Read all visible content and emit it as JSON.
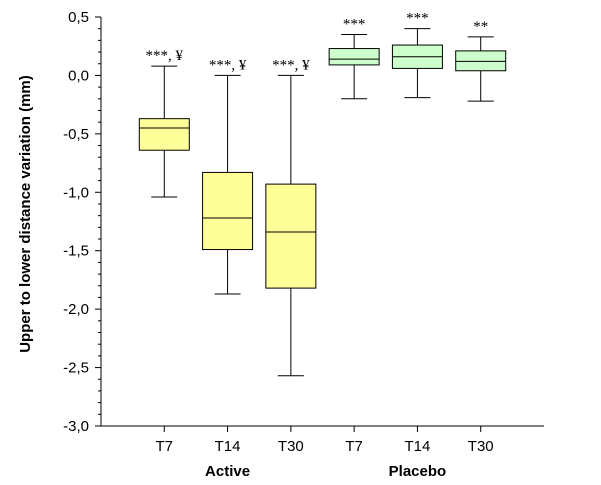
{
  "chart_data": {
    "type": "box",
    "ylabel": "Upper to lower distance variation (mm)",
    "ylim": [
      -3.0,
      0.5
    ],
    "yticks": [
      "0,5",
      "0,0",
      "-0,5",
      "-1,0",
      "-1,5",
      "-2,0",
      "-2,5",
      "-3,0"
    ],
    "ytick_values": [
      0.5,
      0.0,
      -0.5,
      -1.0,
      -1.5,
      -2.0,
      -2.5,
      -3.0
    ],
    "groups": [
      "Active",
      "Placebo"
    ],
    "colors": {
      "Active": "#ffff99",
      "Placebo": "#ccffcc"
    },
    "boxes": [
      {
        "group": "Active",
        "label": "T7",
        "min": -1.04,
        "q1": -0.64,
        "median": -0.45,
        "q3": -0.37,
        "max": 0.08,
        "annotation": "***, ¥"
      },
      {
        "group": "Active",
        "label": "T14",
        "min": -1.87,
        "q1": -1.49,
        "median": -1.22,
        "q3": -0.83,
        "max": 0.0,
        "annotation": "***, ¥"
      },
      {
        "group": "Active",
        "label": "T30",
        "min": -2.57,
        "q1": -1.82,
        "median": -1.34,
        "q3": -0.93,
        "max": 0.0,
        "annotation": "***, ¥"
      },
      {
        "group": "Placebo",
        "label": "T7",
        "min": -0.2,
        "q1": 0.09,
        "median": 0.14,
        "q3": 0.23,
        "max": 0.35,
        "annotation": "***"
      },
      {
        "group": "Placebo",
        "label": "T14",
        "min": -0.19,
        "q1": 0.06,
        "median": 0.16,
        "q3": 0.26,
        "max": 0.4,
        "annotation": "***"
      },
      {
        "group": "Placebo",
        "label": "T30",
        "min": -0.22,
        "q1": 0.04,
        "median": 0.12,
        "q3": 0.21,
        "max": 0.33,
        "annotation": "**"
      }
    ]
  }
}
